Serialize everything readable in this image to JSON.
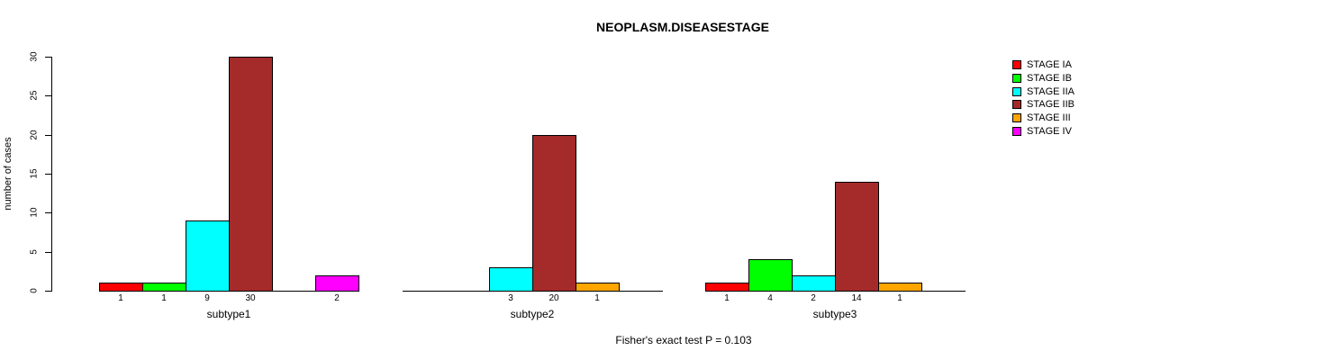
{
  "chart_data": {
    "type": "bar",
    "title": "NEOPLASM.DISEASESTAGE",
    "ylabel": "number of cases",
    "caption": "Fisher's exact test P = 0.103",
    "ylim": [
      0,
      30
    ],
    "yticks": [
      0,
      5,
      10,
      15,
      20,
      25,
      30
    ],
    "grid": false,
    "legend_position": "right",
    "series": [
      {
        "name": "STAGE IA",
        "color": "#FF0000"
      },
      {
        "name": "STAGE IB",
        "color": "#00FF00"
      },
      {
        "name": "STAGE IIA",
        "color": "#00FFFF"
      },
      {
        "name": "STAGE IIB",
        "color": "#A52A2A"
      },
      {
        "name": "STAGE III",
        "color": "#FFA500"
      },
      {
        "name": "STAGE IV",
        "color": "#FF00FF"
      }
    ],
    "groups": [
      {
        "label": "subtype1",
        "values": [
          1,
          1,
          9,
          30,
          0,
          2
        ]
      },
      {
        "label": "subtype2",
        "values": [
          0,
          0,
          3,
          20,
          1,
          0
        ]
      },
      {
        "label": "subtype3",
        "values": [
          1,
          4,
          2,
          14,
          1,
          0
        ]
      }
    ]
  }
}
